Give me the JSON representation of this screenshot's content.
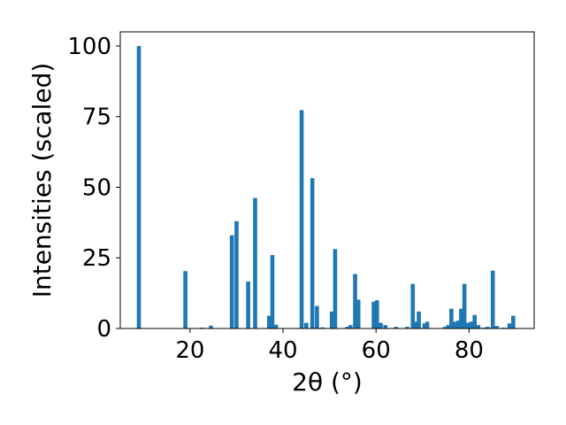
{
  "chart_data": {
    "type": "bar",
    "xlabel": "2θ (°)",
    "ylabel": "Intensities (scaled)",
    "xlim": [
      5,
      94
    ],
    "ylim": [
      0,
      105
    ],
    "x_ticks": [
      20,
      40,
      60,
      80
    ],
    "y_ticks": [
      0,
      25,
      50,
      75,
      100
    ],
    "grid": false,
    "bar_color": "#1f77b4",
    "x": [
      9.0,
      19.0,
      22.5,
      24.5,
      29.0,
      30.0,
      32.5,
      34.0,
      37.0,
      37.7,
      38.5,
      44.0,
      45.0,
      46.3,
      47.3,
      48.5,
      50.5,
      51.2,
      53.8,
      54.5,
      55.5,
      56.2,
      59.5,
      60.2,
      61.0,
      62.0,
      64.3,
      66.7,
      67.9,
      68.5,
      69.2,
      70.4,
      71.0,
      74.8,
      75.5,
      76.2,
      77.0,
      77.7,
      78.3,
      79.0,
      79.7,
      80.4,
      81.2,
      82.0,
      83.2,
      84.0,
      85.1,
      86.0,
      87.5,
      88.7,
      89.5
    ],
    "values": [
      100,
      20.3,
      0.3,
      1,
      33,
      38,
      16.6,
      46.2,
      4.5,
      26,
      1.3,
      77.3,
      2,
      53.2,
      8,
      0.4,
      6,
      28.1,
      0.6,
      1.2,
      19.3,
      10.2,
      9.5,
      10,
      2,
      1.2,
      0.6,
      0.6,
      15.8,
      2.4,
      6,
      1.8,
      2.4,
      0.6,
      1.2,
      7,
      2.4,
      2.8,
      7,
      15.8,
      2,
      2.4,
      4.8,
      1.2,
      0.3,
      0.6,
      20.5,
      0.9,
      0.3,
      1.8,
      4.5
    ]
  }
}
